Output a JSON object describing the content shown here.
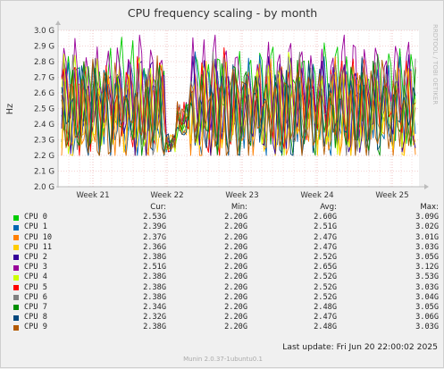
{
  "window": {
    "title": "CPU frequency scaling - by month"
  },
  "side_label": "RRDTOOL / TOBI OETIKER",
  "chart_data": {
    "type": "line",
    "title": "CPU frequency scaling - by month",
    "ylabel": "Hz",
    "ylim": [
      2.0,
      3.0
    ],
    "y_ticks": [
      2.0,
      2.1,
      2.2,
      2.3,
      2.4,
      2.5,
      2.6,
      2.7,
      2.8,
      2.9,
      3.0
    ],
    "y_tick_labels": [
      "2.0 G",
      "2.1 G",
      "2.2 G",
      "2.3 G",
      "2.4 G",
      "2.5 G",
      "2.6 G",
      "2.7 G",
      "2.8 G",
      "2.9 G",
      "3.0 G"
    ],
    "x_tick_labels": [
      "Week 21",
      "Week 22",
      "Week 23",
      "Week 24",
      "Week 25"
    ],
    "grid": true,
    "legend_placement": "bottom",
    "series": [
      {
        "name": "CPU 0",
        "color": "#00cc00",
        "cur": "2.53G",
        "min": "2.20G",
        "avg": "2.60G",
        "max": "3.09G"
      },
      {
        "name": "CPU 1",
        "color": "#0066b3",
        "cur": "2.39G",
        "min": "2.20G",
        "avg": "2.51G",
        "max": "3.02G"
      },
      {
        "name": "CPU 10",
        "color": "#ff8000",
        "cur": "2.37G",
        "min": "2.20G",
        "avg": "2.47G",
        "max": "3.01G"
      },
      {
        "name": "CPU 11",
        "color": "#ffcc00",
        "cur": "2.36G",
        "min": "2.20G",
        "avg": "2.47G",
        "max": "3.03G"
      },
      {
        "name": "CPU 2",
        "color": "#330099",
        "cur": "2.38G",
        "min": "2.20G",
        "avg": "2.52G",
        "max": "3.05G"
      },
      {
        "name": "CPU 3",
        "color": "#990099",
        "cur": "2.51G",
        "min": "2.20G",
        "avg": "2.65G",
        "max": "3.12G"
      },
      {
        "name": "CPU 4",
        "color": "#ccff00",
        "cur": "2.38G",
        "min": "2.20G",
        "avg": "2.52G",
        "max": "3.53G"
      },
      {
        "name": "CPU 5",
        "color": "#ff0000",
        "cur": "2.38G",
        "min": "2.20G",
        "avg": "2.52G",
        "max": "3.03G"
      },
      {
        "name": "CPU 6",
        "color": "#808080",
        "cur": "2.38G",
        "min": "2.20G",
        "avg": "2.52G",
        "max": "3.04G"
      },
      {
        "name": "CPU 7",
        "color": "#008f00",
        "cur": "2.34G",
        "min": "2.20G",
        "avg": "2.48G",
        "max": "3.05G"
      },
      {
        "name": "CPU 8",
        "color": "#00487d",
        "cur": "2.32G",
        "min": "2.20G",
        "avg": "2.47G",
        "max": "3.06G"
      },
      {
        "name": "CPU 9",
        "color": "#b35a00",
        "cur": "2.38G",
        "min": "2.20G",
        "avg": "2.48G",
        "max": "3.03G"
      }
    ]
  },
  "legend_header": {
    "cur": "Cur:",
    "min": "Min:",
    "avg": "Avg:",
    "max": "Max:"
  },
  "last_update": "Last update: Fri Jun 20 22:00:02 2025",
  "footer": "Munin 2.0.37-1ubuntu0.1"
}
